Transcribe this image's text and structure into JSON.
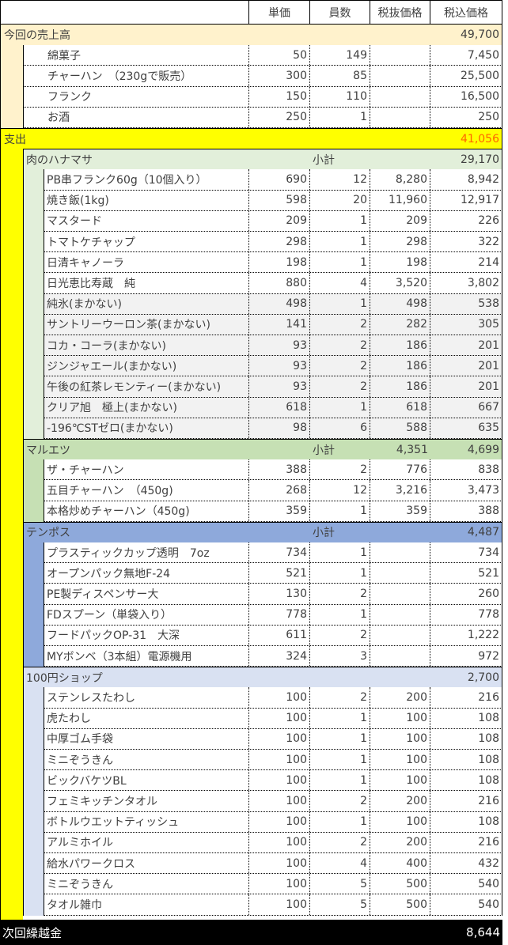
{
  "header": {
    "col_unit_price": "単価",
    "col_qty": "員数",
    "col_pretax": "税抜価格",
    "col_taxed": "税込価格"
  },
  "sales": {
    "label": "今回の売上高",
    "total": "49,700",
    "color": "#FFF2CC",
    "items": [
      {
        "name": "綿菓子",
        "unit": "50",
        "qty": "149",
        "pretax": "",
        "taxed": "7,450"
      },
      {
        "name": "チャーハン　（230gで販売）",
        "unit": "300",
        "qty": "85",
        "pretax": "",
        "taxed": "25,500"
      },
      {
        "name": "フランク",
        "unit": "150",
        "qty": "110",
        "pretax": "",
        "taxed": "16,500"
      },
      {
        "name": "お酒",
        "unit": "250",
        "qty": "1",
        "pretax": "",
        "taxed": "250"
      }
    ]
  },
  "expenses": {
    "label": "支出",
    "total": "41,056",
    "color": "#FFFF00",
    "total_color": "#FF6600",
    "stores": [
      {
        "name": "肉のハナマサ",
        "subtotal_label": "小計",
        "subtotal_pretax": "",
        "subtotal_taxed": "29,170",
        "color": "#E2EFDA",
        "items": [
          {
            "name": "PB串フランク60g（10個入り）",
            "unit": "690",
            "qty": "12",
            "pretax": "8,280",
            "taxed": "8,942",
            "gray": false
          },
          {
            "name": "焼き飯(1kg)",
            "unit": "598",
            "qty": "20",
            "pretax": "11,960",
            "taxed": "12,917",
            "gray": false
          },
          {
            "name": "マスタード",
            "unit": "209",
            "qty": "1",
            "pretax": "209",
            "taxed": "226",
            "gray": false
          },
          {
            "name": "トマトケチャップ",
            "unit": "298",
            "qty": "1",
            "pretax": "298",
            "taxed": "322",
            "gray": false
          },
          {
            "name": "日清キャノーラ",
            "unit": "198",
            "qty": "1",
            "pretax": "198",
            "taxed": "214",
            "gray": false
          },
          {
            "name": "日光恵比寿蔵　純",
            "unit": "880",
            "qty": "4",
            "pretax": "3,520",
            "taxed": "3,802",
            "gray": false
          },
          {
            "name": "純氷(まかない)",
            "unit": "498",
            "qty": "1",
            "pretax": "498",
            "taxed": "538",
            "gray": true
          },
          {
            "name": "サントリーウーロン茶(まかない)",
            "unit": "141",
            "qty": "2",
            "pretax": "282",
            "taxed": "305",
            "gray": true
          },
          {
            "name": "コカ・コーラ(まかない)",
            "unit": "93",
            "qty": "2",
            "pretax": "186",
            "taxed": "201",
            "gray": true
          },
          {
            "name": "ジンジャエール(まかない)",
            "unit": "93",
            "qty": "2",
            "pretax": "186",
            "taxed": "201",
            "gray": true
          },
          {
            "name": "午後の紅茶レモンティー(まかない)",
            "unit": "93",
            "qty": "2",
            "pretax": "186",
            "taxed": "201",
            "gray": true
          },
          {
            "name": "クリア旭　極上(まかない)",
            "unit": "618",
            "qty": "1",
            "pretax": "618",
            "taxed": "667",
            "gray": true
          },
          {
            "name": "-196℃STゼロ(まかない)",
            "unit": "98",
            "qty": "6",
            "pretax": "588",
            "taxed": "635",
            "gray": true
          }
        ]
      },
      {
        "name": "マルエツ",
        "subtotal_label": "小計",
        "subtotal_pretax": "4,351",
        "subtotal_taxed": "4,699",
        "color": "#C6E0B4",
        "items": [
          {
            "name": "ザ・チャーハン",
            "unit": "388",
            "qty": "2",
            "pretax": "776",
            "taxed": "838",
            "gray": false
          },
          {
            "name": "五目チャーハン　（450g)",
            "unit": "268",
            "qty": "12",
            "pretax": "3,216",
            "taxed": "3,473",
            "gray": false
          },
          {
            "name": "本格炒めチャーハン（450g)",
            "unit": "359",
            "qty": "1",
            "pretax": "359",
            "taxed": "388",
            "gray": false
          }
        ]
      },
      {
        "name": "テンポス",
        "subtotal_label": "小計",
        "subtotal_pretax": "",
        "subtotal_taxed": "4,487",
        "color": "#8EA9DB",
        "items": [
          {
            "name": "プラスティックカップ透明　7oz",
            "unit": "734",
            "qty": "1",
            "pretax": "",
            "taxed": "734",
            "gray": false
          },
          {
            "name": "オープンパック無地F-24",
            "unit": "521",
            "qty": "1",
            "pretax": "",
            "taxed": "521",
            "gray": false
          },
          {
            "name": "PE製ディスペンサー大",
            "unit": "130",
            "qty": "2",
            "pretax": "",
            "taxed": "260",
            "gray": false
          },
          {
            "name": "FDスプーン（単袋入り）",
            "unit": "778",
            "qty": "1",
            "pretax": "",
            "taxed": "778",
            "gray": false
          },
          {
            "name": "フードパックOP-31　大深",
            "unit": "611",
            "qty": "2",
            "pretax": "",
            "taxed": "1,222",
            "gray": false
          },
          {
            "name": "MYボンベ（3本組）電源機用",
            "unit": "324",
            "qty": "3",
            "pretax": "",
            "taxed": "972",
            "gray": false
          }
        ]
      },
      {
        "name": "100円ショップ",
        "subtotal_label": "",
        "subtotal_pretax": "",
        "subtotal_taxed": "2,700",
        "color": "#D9E1F2",
        "items": [
          {
            "name": "ステンレスたわし",
            "unit": "100",
            "qty": "2",
            "pretax": "200",
            "taxed": "216",
            "gray": false
          },
          {
            "name": "虎たわし",
            "unit": "100",
            "qty": "1",
            "pretax": "100",
            "taxed": "108",
            "gray": false
          },
          {
            "name": "中厚ゴム手袋",
            "unit": "100",
            "qty": "1",
            "pretax": "100",
            "taxed": "108",
            "gray": false
          },
          {
            "name": "ミニぞうきん",
            "unit": "100",
            "qty": "1",
            "pretax": "100",
            "taxed": "108",
            "gray": false
          },
          {
            "name": "ビックバケツBL",
            "unit": "100",
            "qty": "1",
            "pretax": "100",
            "taxed": "108",
            "gray": false
          },
          {
            "name": "フェミキッチンタオル",
            "unit": "100",
            "qty": "2",
            "pretax": "200",
            "taxed": "216",
            "gray": false
          },
          {
            "name": "ボトルウエットティッシュ",
            "unit": "100",
            "qty": "1",
            "pretax": "100",
            "taxed": "108",
            "gray": false
          },
          {
            "name": "アルミホイル",
            "unit": "100",
            "qty": "2",
            "pretax": "200",
            "taxed": "216",
            "gray": false
          },
          {
            "name": "給水パワークロス",
            "unit": "100",
            "qty": "4",
            "pretax": "400",
            "taxed": "432",
            "gray": false
          },
          {
            "name": "ミニぞうきん",
            "unit": "100",
            "qty": "5",
            "pretax": "500",
            "taxed": "540",
            "gray": false
          },
          {
            "name": "タオル雑巾",
            "unit": "100",
            "qty": "5",
            "pretax": "500",
            "taxed": "540",
            "gray": false
          }
        ]
      }
    ]
  },
  "carryover": {
    "label": "次回繰越金",
    "total": "8,644"
  }
}
